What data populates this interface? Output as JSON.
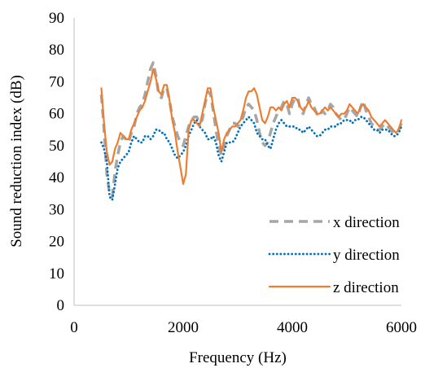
{
  "chart_data": {
    "type": "line",
    "xlabel": "Frequency (Hz)",
    "ylabel": "Sound reduction index (dB)",
    "xlim": [
      0,
      6000
    ],
    "ylim": [
      0,
      90
    ],
    "xticks": [
      0,
      2000,
      4000,
      6000
    ],
    "yticks": [
      0,
      10,
      20,
      30,
      40,
      50,
      60,
      70,
      80,
      90
    ],
    "grid": false,
    "legend_position": "bottom-right",
    "series": [
      {
        "name": "x direction",
        "color": "#a6a6a6",
        "style": "dashed",
        "x": [
          500,
          550,
          600,
          650,
          700,
          750,
          800,
          850,
          900,
          950,
          1000,
          1050,
          1100,
          1150,
          1200,
          1250,
          1300,
          1350,
          1400,
          1450,
          1500,
          1550,
          1600,
          1650,
          1700,
          1750,
          1800,
          1850,
          1900,
          1950,
          2000,
          2050,
          2100,
          2150,
          2200,
          2250,
          2300,
          2350,
          2400,
          2450,
          2500,
          2550,
          2600,
          2650,
          2700,
          2750,
          2800,
          2850,
          2900,
          2950,
          3000,
          3050,
          3100,
          3150,
          3200,
          3250,
          3300,
          3350,
          3400,
          3450,
          3500,
          3550,
          3600,
          3650,
          3700,
          3750,
          3800,
          3850,
          3900,
          3950,
          4000,
          4050,
          4100,
          4150,
          4200,
          4250,
          4300,
          4350,
          4400,
          4450,
          4500,
          4550,
          4600,
          4650,
          4700,
          4750,
          4800,
          4850,
          4900,
          4950,
          5000,
          5050,
          5100,
          5150,
          5200,
          5250,
          5300,
          5350,
          5400,
          5450,
          5500,
          5550,
          5600,
          5650,
          5700,
          5750,
          5800,
          5850,
          5900,
          5950,
          6000
        ],
        "y": [
          66,
          55,
          41,
          35,
          34,
          42,
          47,
          51,
          53,
          52,
          51,
          54,
          56,
          60,
          62,
          63,
          66,
          70,
          74,
          76,
          72,
          66,
          65,
          68,
          68,
          64,
          59,
          56,
          53,
          51,
          50,
          53,
          56,
          58,
          59,
          59,
          57,
          58,
          63,
          67,
          66,
          61,
          55,
          50,
          47,
          50,
          53,
          55,
          57,
          57,
          56,
          57,
          59,
          62,
          63,
          62,
          61,
          58,
          54,
          51,
          50,
          51,
          54,
          57,
          59,
          61,
          62,
          64,
          63,
          60,
          63,
          65,
          65,
          61,
          60,
          63,
          65,
          63,
          62,
          60,
          59,
          61,
          60,
          61,
          63,
          62,
          60,
          59,
          58,
          58,
          60,
          62,
          61,
          60,
          59,
          62,
          64,
          61,
          59,
          57,
          56,
          55,
          55,
          56,
          57,
          56,
          55,
          54,
          54,
          55,
          57
        ]
      },
      {
        "name": "y direction",
        "color": "#0070c0",
        "style": "dotted",
        "x": [
          500,
          550,
          600,
          650,
          700,
          750,
          800,
          850,
          900,
          950,
          1000,
          1050,
          1100,
          1150,
          1200,
          1250,
          1300,
          1350,
          1400,
          1450,
          1500,
          1550,
          1600,
          1650,
          1700,
          1750,
          1800,
          1850,
          1900,
          1950,
          2000,
          2050,
          2100,
          2150,
          2200,
          2250,
          2300,
          2350,
          2400,
          2450,
          2500,
          2550,
          2600,
          2650,
          2700,
          2750,
          2800,
          2850,
          2900,
          2950,
          3000,
          3050,
          3100,
          3150,
          3200,
          3250,
          3300,
          3350,
          3400,
          3450,
          3500,
          3550,
          3600,
          3650,
          3700,
          3750,
          3800,
          3850,
          3900,
          3950,
          4000,
          4050,
          4100,
          4150,
          4200,
          4250,
          4300,
          4350,
          4400,
          4450,
          4500,
          4550,
          4600,
          4650,
          4700,
          4750,
          4800,
          4850,
          4900,
          4950,
          5000,
          5050,
          5100,
          5150,
          5200,
          5250,
          5300,
          5350,
          5400,
          5450,
          5500,
          5550,
          5600,
          5650,
          5700,
          5750,
          5800,
          5850,
          5900,
          5950,
          6000
        ],
        "y": [
          51,
          49,
          45,
          34,
          33,
          38,
          43,
          45,
          46,
          47,
          48,
          51,
          53,
          52,
          51,
          51,
          53,
          53,
          52,
          53,
          55,
          55,
          54,
          54,
          52,
          51,
          49,
          47,
          46,
          47,
          48,
          50,
          53,
          55,
          57,
          58,
          56,
          55,
          54,
          52,
          52,
          53,
          51,
          47,
          45,
          48,
          51,
          51,
          51,
          52,
          54,
          56,
          57,
          58,
          59,
          58,
          57,
          54,
          53,
          52,
          52,
          50,
          49,
          52,
          55,
          57,
          58,
          57,
          56,
          56,
          56,
          56,
          55,
          55,
          54,
          55,
          56,
          55,
          54,
          53,
          53,
          54,
          55,
          55,
          56,
          56,
          56,
          57,
          57,
          58,
          58,
          58,
          57,
          58,
          58,
          59,
          59,
          58,
          57,
          56,
          55,
          55,
          54,
          55,
          55,
          55,
          54,
          53,
          53,
          54,
          56
        ]
      },
      {
        "name": "z direction",
        "color": "#ed7d31",
        "style": "solid",
        "x": [
          500,
          550,
          600,
          650,
          700,
          750,
          800,
          850,
          900,
          950,
          1000,
          1050,
          1100,
          1150,
          1200,
          1250,
          1300,
          1350,
          1400,
          1450,
          1500,
          1550,
          1600,
          1650,
          1700,
          1750,
          1800,
          1850,
          1900,
          1950,
          2000,
          2050,
          2100,
          2150,
          2200,
          2250,
          2300,
          2350,
          2400,
          2450,
          2500,
          2550,
          2600,
          2650,
          2700,
          2750,
          2800,
          2850,
          2900,
          2950,
          3000,
          3050,
          3100,
          3150,
          3200,
          3250,
          3300,
          3350,
          3400,
          3450,
          3500,
          3550,
          3600,
          3650,
          3700,
          3750,
          3800,
          3850,
          3900,
          3950,
          4000,
          4050,
          4100,
          4150,
          4200,
          4250,
          4300,
          4350,
          4400,
          4450,
          4500,
          4550,
          4600,
          4650,
          4700,
          4750,
          4800,
          4850,
          4900,
          4950,
          5000,
          5050,
          5100,
          5150,
          5200,
          5250,
          5300,
          5350,
          5400,
          5450,
          5500,
          5550,
          5600,
          5650,
          5700,
          5750,
          5800,
          5850,
          5900,
          5950,
          6000
        ],
        "y": [
          68,
          57,
          48,
          44,
          45,
          49,
          51,
          54,
          53,
          52,
          52,
          55,
          57,
          59,
          61,
          62,
          64,
          67,
          70,
          74,
          71,
          67,
          66,
          69,
          69,
          64,
          58,
          54,
          48,
          43,
          38,
          41,
          55,
          58,
          58,
          57,
          56,
          60,
          64,
          68,
          68,
          62,
          58,
          54,
          48,
          52,
          54,
          55,
          56,
          56,
          57,
          58,
          61,
          65,
          67,
          67,
          68,
          66,
          62,
          58,
          57,
          59,
          62,
          62,
          61,
          62,
          61,
          63,
          64,
          62,
          65,
          65,
          64,
          62,
          61,
          62,
          64,
          62,
          61,
          60,
          60,
          61,
          62,
          61,
          62,
          61,
          60,
          59,
          60,
          60,
          61,
          63,
          62,
          61,
          60,
          62,
          63,
          62,
          61,
          59,
          58,
          57,
          56,
          57,
          58,
          57,
          56,
          55,
          54,
          55,
          58
        ]
      }
    ]
  }
}
